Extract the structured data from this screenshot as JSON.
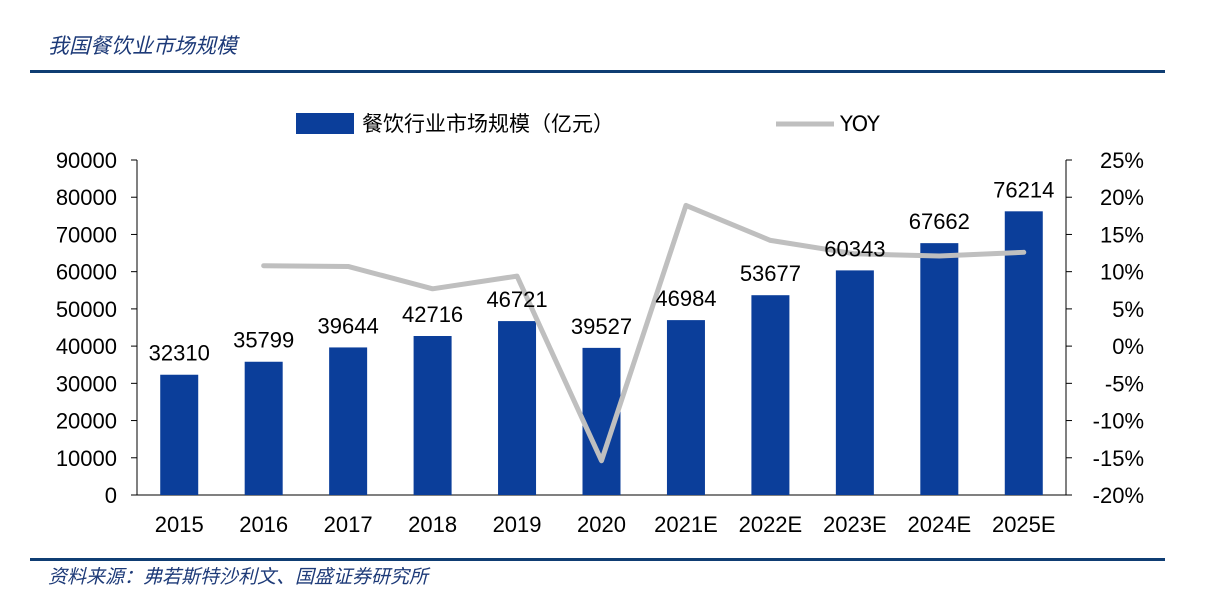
{
  "header": {
    "title": "我国餐饮业市场规模"
  },
  "footer": {
    "source": "资料来源：弗若斯特沙利文、国盛证券研究所"
  },
  "chart_data": {
    "type": "bar",
    "categories": [
      "2015",
      "2016",
      "2017",
      "2018",
      "2019",
      "2020",
      "2021E",
      "2022E",
      "2023E",
      "2024E",
      "2025E"
    ],
    "series": [
      {
        "name": "餐饮行业市场规模（亿元）",
        "type": "bar",
        "axis": "left",
        "color": "#0b3e9a",
        "values": [
          32310,
          35799,
          39644,
          42716,
          46721,
          39527,
          46984,
          53677,
          60343,
          67662,
          76214
        ]
      },
      {
        "name": "YOY",
        "type": "line",
        "axis": "right",
        "color": "#bfbfbf",
        "values": [
          null,
          0.108,
          0.107,
          0.077,
          0.094,
          -0.154,
          0.189,
          0.142,
          0.124,
          0.121,
          0.126
        ]
      }
    ],
    "y_left": {
      "min": 0,
      "max": 90000,
      "step": 10000,
      "ticks": [
        "0",
        "10000",
        "20000",
        "30000",
        "40000",
        "50000",
        "60000",
        "70000",
        "80000",
        "90000"
      ]
    },
    "y_right": {
      "min": -0.2,
      "max": 0.25,
      "step": 0.05,
      "ticks": [
        "-20%",
        "-15%",
        "-10%",
        "-5%",
        "0%",
        "5%",
        "10%",
        "15%",
        "20%",
        "25%"
      ]
    },
    "legend_position": "top",
    "grid": false
  }
}
